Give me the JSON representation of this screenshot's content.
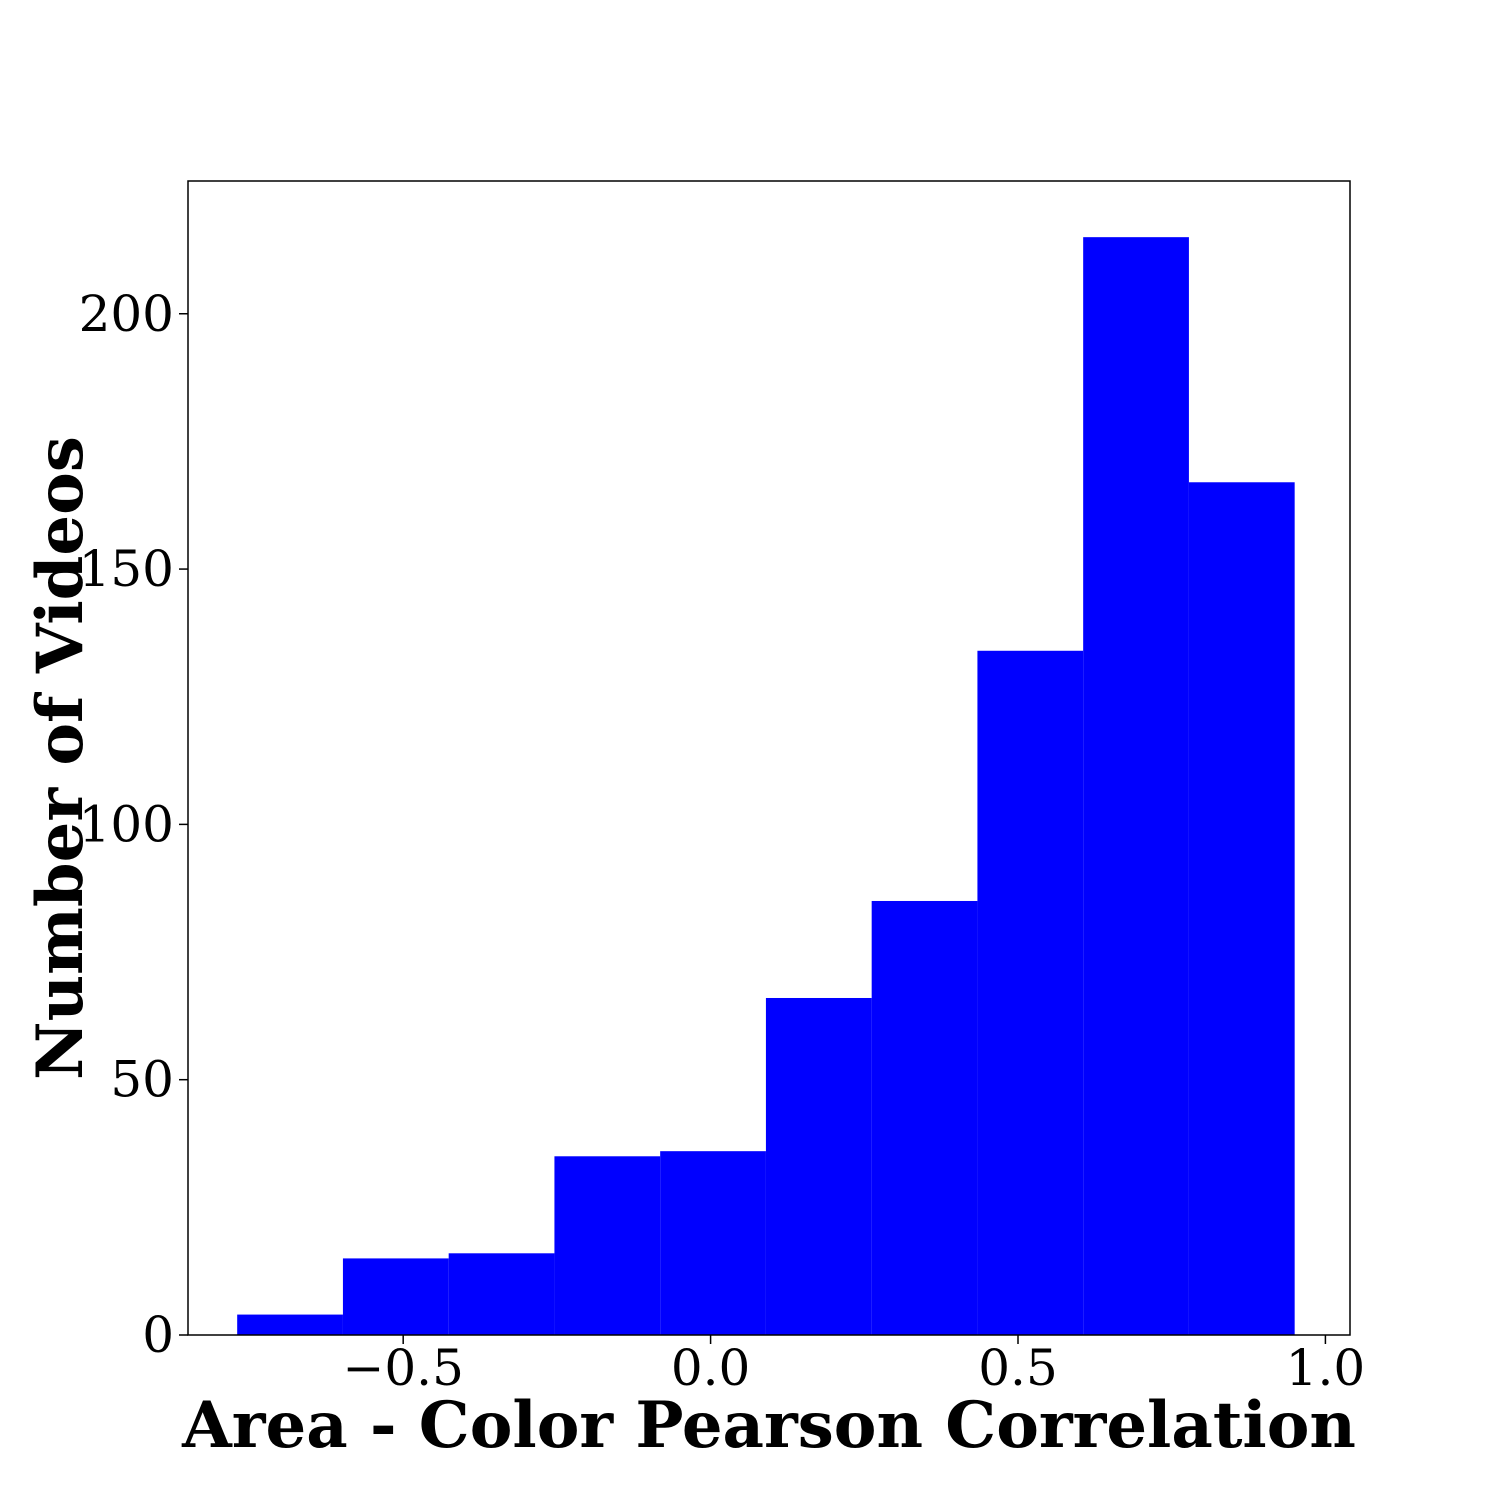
{
  "chart_data": {
    "type": "bar",
    "title": "",
    "xlabel": "Area - Color Pearson Correlation",
    "ylabel": "Number of Videos",
    "bin_edges": [
      -0.77,
      -0.598,
      -0.426,
      -0.254,
      -0.082,
      0.09,
      0.262,
      0.434,
      0.606,
      0.778,
      0.95
    ],
    "values": [
      4,
      15,
      16,
      35,
      36,
      66,
      85,
      134,
      215,
      167
    ],
    "xlim": [
      -0.85,
      1.04
    ],
    "ylim": [
      0,
      226
    ],
    "xticks": [
      -0.5,
      0.0,
      0.5,
      1.0
    ],
    "xtick_labels": [
      "−0.5",
      "0.0",
      "0.5",
      "1.0"
    ],
    "yticks": [
      0,
      50,
      100,
      150,
      200
    ],
    "ytick_labels": [
      "0",
      "50",
      "100",
      "150",
      "200"
    ],
    "color": "#0000ff",
    "grid": false,
    "legend": "none"
  }
}
